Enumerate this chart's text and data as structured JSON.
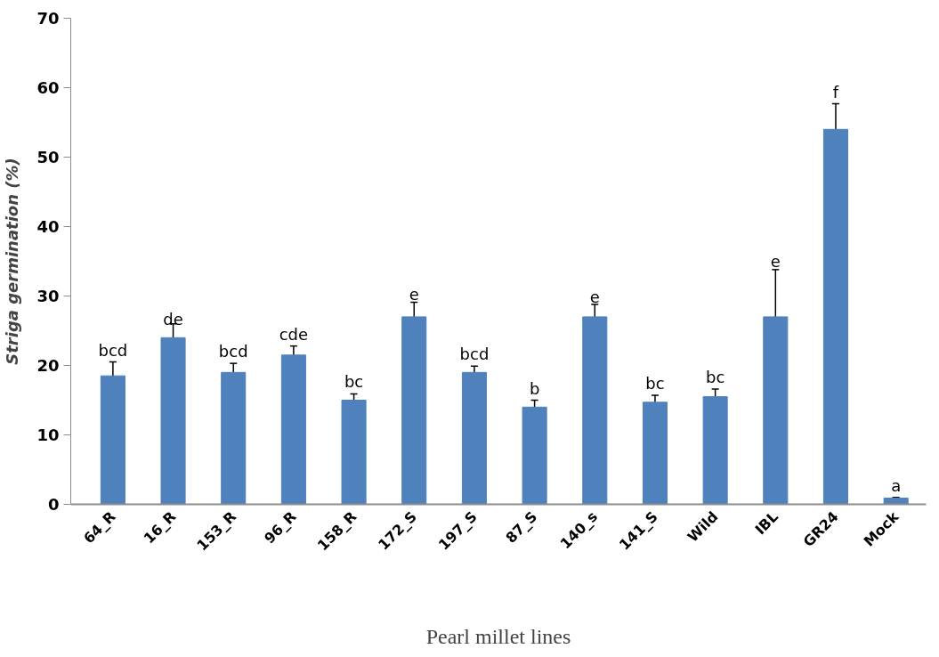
{
  "chart_data": {
    "type": "bar",
    "xlabel": "Pearl millet lines",
    "ylabel": "Striga germination (%)",
    "categories": [
      "64_R",
      "16_R",
      "153_R",
      "96_R",
      "158_R",
      "172_S",
      "197_S",
      "87_S",
      "140_s",
      "141_S",
      "Wild",
      "IBL",
      "GR24",
      "Mock"
    ],
    "values": [
      18.5,
      24,
      19,
      21.5,
      15,
      27,
      19,
      14,
      27,
      14.7,
      15.5,
      27,
      54,
      0.9
    ],
    "errors": [
      2,
      2,
      1.3,
      1.3,
      0.9,
      2.1,
      0.9,
      1,
      1.8,
      1,
      1.1,
      6.8,
      3.7,
      0.1
    ],
    "color": "#4f81bd",
    "ylim": [
      0,
      70
    ],
    "yticks": [
      0,
      10,
      20,
      30,
      40,
      50,
      60,
      70
    ],
    "grid": false,
    "annotations": [
      {
        "text": "bcd",
        "x": "64_R",
        "y": 20.5
      },
      {
        "text": "de",
        "x": "16_R",
        "y": 25
      },
      {
        "text": "bcd",
        "x": "153_R",
        "y": 20.3
      },
      {
        "text": "cde",
        "x": "96_R",
        "y": 22.8
      },
      {
        "text": "bc",
        "x": "158_R",
        "y": 15.9
      },
      {
        "text": "e",
        "x": "172_S",
        "y": 29.1
      },
      {
        "text": "bcd",
        "x": "197_S",
        "y": 20
      },
      {
        "text": "b",
        "x": "87_S",
        "y": 15
      },
      {
        "text": "e",
        "x": "140_s",
        "y": 28.7
      },
      {
        "text": "bc",
        "x": "141_S",
        "y": 15.7
      },
      {
        "text": "bc",
        "x": "Wild",
        "y": 16.6
      },
      {
        "text": "e",
        "x": "IBL",
        "y": 33.8
      },
      {
        "text": "f",
        "x": "GR24",
        "y": 57.6
      },
      {
        "text": "a",
        "x": "Mock",
        "y": 1
      }
    ]
  }
}
